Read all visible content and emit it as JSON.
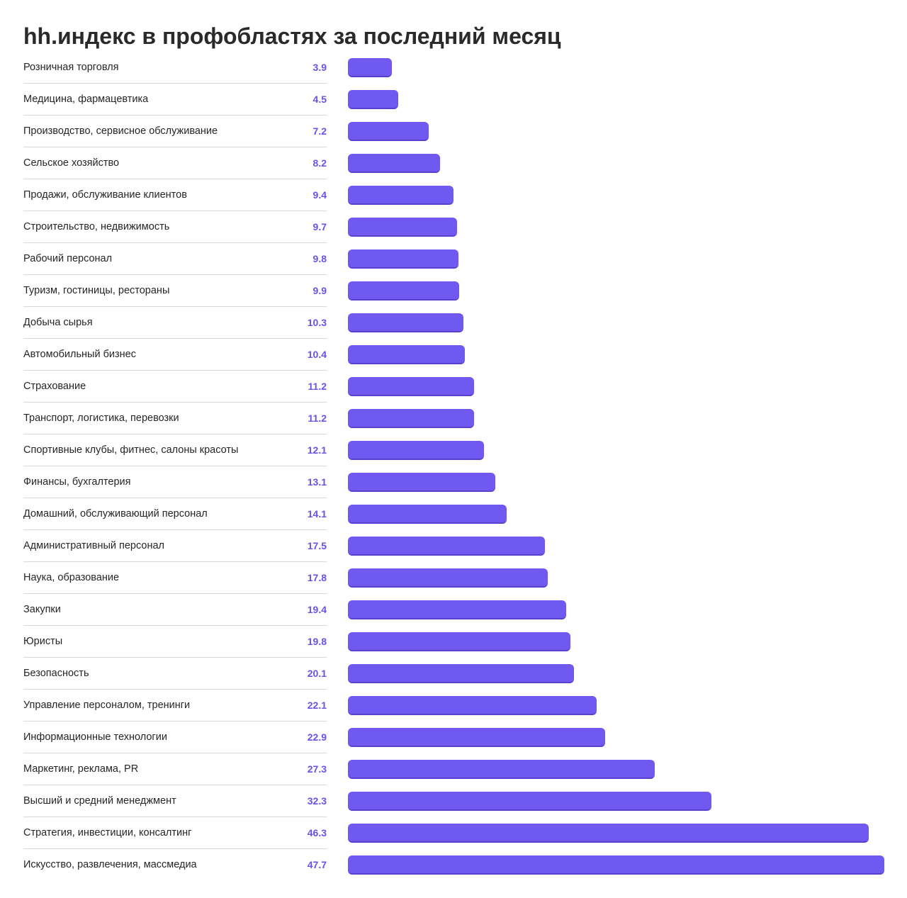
{
  "accent_color": "#7059f0",
  "value_color": "#6a52e8",
  "chart_data": {
    "type": "bar",
    "orientation": "horizontal",
    "title": "hh.индекс в профобластях за последний месяц",
    "xlabel": "",
    "ylabel": "",
    "grid": false,
    "xlim": [
      0,
      47.7
    ],
    "categories": [
      "Розничная торговля",
      "Медицина, фармацевтика",
      "Производство, сервисное обслуживание",
      "Сельское хозяйство",
      "Продажи, обслуживание клиентов",
      "Строительство, недвижимость",
      "Рабочий персонал",
      "Туризм, гостиницы, рестораны",
      "Добыча сырья",
      "Автомобильный бизнес",
      "Страхование",
      "Транспорт, логистика, перевозки",
      "Спортивные клубы, фитнес, салоны красоты",
      "Финансы, бухгалтерия",
      "Домашний, обслуживающий персонал",
      "Административный персонал",
      "Наука, образование",
      "Закупки",
      "Юристы",
      "Безопасность",
      "Управление персоналом, тренинги",
      "Информационные технологии",
      "Маркетинг, реклама, PR",
      "Высший и средний менеджмент",
      "Стратегия, инвестиции, консалтинг",
      "Искусство, развлечения, массмедиа"
    ],
    "values": [
      3.9,
      4.5,
      7.2,
      8.2,
      9.4,
      9.7,
      9.8,
      9.9,
      10.3,
      10.4,
      11.2,
      11.2,
      12.1,
      13.1,
      14.1,
      17.5,
      17.8,
      19.4,
      19.8,
      20.1,
      22.1,
      22.9,
      27.3,
      32.3,
      46.3,
      47.7
    ],
    "value_labels": [
      "3.9",
      "4.5",
      "7.2",
      "8.2",
      "9.4",
      "9.7",
      "9.8",
      "9.9",
      "10.3",
      "10.4",
      "11.2",
      "11.2",
      "12.1",
      "13.1",
      "14.1",
      "17.5",
      "17.8",
      "19.4",
      "19.8",
      "20.1",
      "22.1",
      "22.9",
      "27.3",
      "32.3",
      "46.3",
      "47.7"
    ]
  }
}
